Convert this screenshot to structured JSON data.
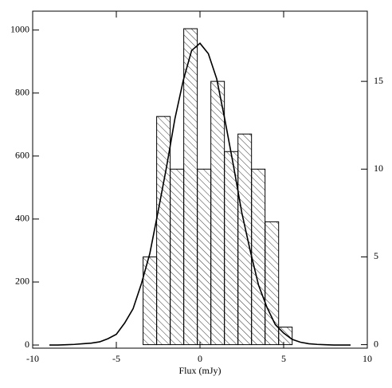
{
  "chart_data": {
    "type": "histogram",
    "x_label": "Flux (mJy)",
    "xlim": [
      -10,
      10
    ],
    "xticks": [
      -10,
      -5,
      0,
      5,
      10
    ],
    "ylim": [
      -10,
      1060
    ],
    "yticks": [
      0,
      200,
      400,
      600,
      800,
      1000
    ],
    "y2lim": [
      -0.2,
      19
    ],
    "y2ticks": [
      0,
      5,
      10,
      15
    ],
    "bins": [
      -3.4,
      -2.59,
      -1.78,
      -0.97,
      -0.16,
      0.65,
      1.46,
      2.27,
      3.08,
      3.89,
      4.7,
      5.51
    ],
    "counts": [
      5,
      13,
      10,
      18,
      10,
      15,
      11,
      12,
      10,
      7,
      1
    ],
    "hist_axis": "y2",
    "hatch": "diagonal",
    "line": {
      "x": [
        -9,
        -8.5,
        -8,
        -7.5,
        -7,
        -6.5,
        -6,
        -5.5,
        -5,
        -4.5,
        -4,
        -3.5,
        -3,
        -2.5,
        -2,
        -1.5,
        -1,
        -0.5,
        0,
        0.5,
        1,
        1.5,
        2,
        2.5,
        3,
        3.5,
        4,
        4.5,
        5,
        5.5,
        6,
        6.5,
        7,
        7.5,
        8,
        8.5,
        9
      ],
      "values": [
        0,
        0,
        1,
        2,
        4,
        6,
        10,
        20,
        34,
        70,
        115,
        195,
        290,
        425,
        565,
        718,
        840,
        935,
        958,
        925,
        845,
        712,
        570,
        420,
        300,
        190,
        120,
        65,
        38,
        18,
        9,
        4,
        2,
        1,
        0,
        0,
        0
      ],
      "color": "#000000"
    }
  }
}
